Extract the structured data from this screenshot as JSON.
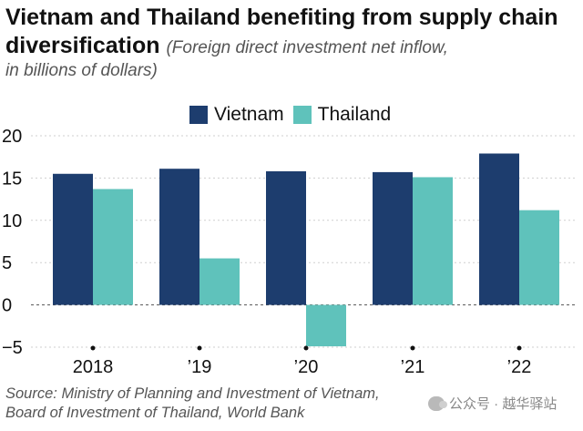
{
  "header": {
    "title_line1": "Vietnam and Thailand benefiting from supply chain",
    "title_line2": "diversification",
    "subtitle_line1": "(Foreign direct investment net inflow,",
    "subtitle_line2": "in billions of dollars)"
  },
  "colors": {
    "vietnam": "#1d3d6e",
    "thailand": "#5fc2bb"
  },
  "chart_data": {
    "type": "bar",
    "categories": [
      "2018",
      "’19",
      "’20",
      "’21",
      "’22"
    ],
    "series": [
      {
        "name": "Vietnam",
        "values": [
          15.5,
          16.1,
          15.8,
          15.7,
          17.9
        ]
      },
      {
        "name": "Thailand",
        "values": [
          13.7,
          5.5,
          -4.9,
          15.1,
          11.2
        ]
      }
    ],
    "y_ticks": [
      20,
      15,
      10,
      5,
      0,
      -5
    ],
    "y_tick_labels": [
      "20",
      "15",
      "10",
      "5",
      "0",
      "−5"
    ],
    "ylim": [
      -5,
      20
    ],
    "grid": true,
    "legend_position": "top-center"
  },
  "source": {
    "line1": "Source: Ministry of Planning and Investment of Vietnam,",
    "line2": "Board of Investment of Thailand, World Bank"
  },
  "watermark": {
    "text": "公众号 · 越华驿站"
  }
}
